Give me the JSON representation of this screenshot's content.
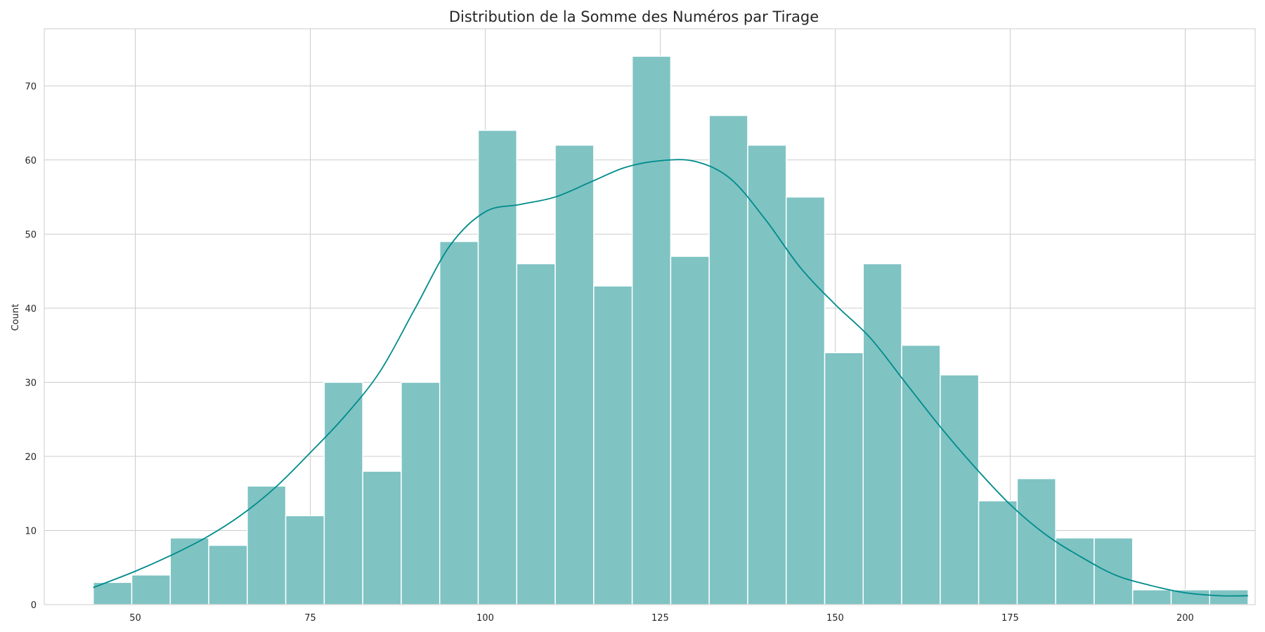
{
  "chart_data": {
    "type": "bar",
    "subtype": "histogram",
    "title": "Distribution de la Somme des Numéros par Tirage",
    "xlabel": "",
    "ylabel": "Count",
    "xlim": [
      37,
      210
    ],
    "ylim": [
      0,
      77.7
    ],
    "x_ticks": [
      50,
      75,
      100,
      125,
      150,
      175,
      200
    ],
    "y_ticks": [
      0,
      10,
      20,
      30,
      40,
      50,
      60,
      70
    ],
    "grid": true,
    "bin_start": 44,
    "bin_width": 5.5,
    "values": [
      3,
      4,
      9,
      8,
      16,
      12,
      30,
      18,
      30,
      49,
      64,
      46,
      62,
      43,
      74,
      47,
      66,
      62,
      55,
      34,
      46,
      35,
      31,
      14,
      17,
      9,
      9,
      2,
      2,
      2
    ],
    "kde": {
      "x": [
        44,
        50,
        55,
        60,
        65,
        70,
        75,
        80,
        85,
        90,
        95,
        100,
        105,
        110,
        115,
        120,
        125,
        130,
        135,
        140,
        145,
        150,
        155,
        160,
        165,
        170,
        175,
        180,
        185,
        190,
        195,
        200,
        205,
        209
      ],
      "y": [
        2.3,
        4.5,
        6.6,
        9.0,
        12.0,
        15.8,
        20.5,
        25.5,
        31.5,
        40.0,
        48.5,
        53.0,
        54.0,
        55.0,
        57.0,
        59.0,
        59.9,
        59.8,
        57.5,
        52.0,
        45.5,
        40.5,
        36.0,
        30.0,
        24.0,
        18.5,
        13.5,
        9.5,
        6.5,
        4.0,
        2.6,
        1.6,
        1.2,
        1.2
      ]
    },
    "colors": {
      "bar_fill": "#7fc3c3",
      "kde_line": "#008b8b",
      "grid": "#cccccc"
    }
  }
}
